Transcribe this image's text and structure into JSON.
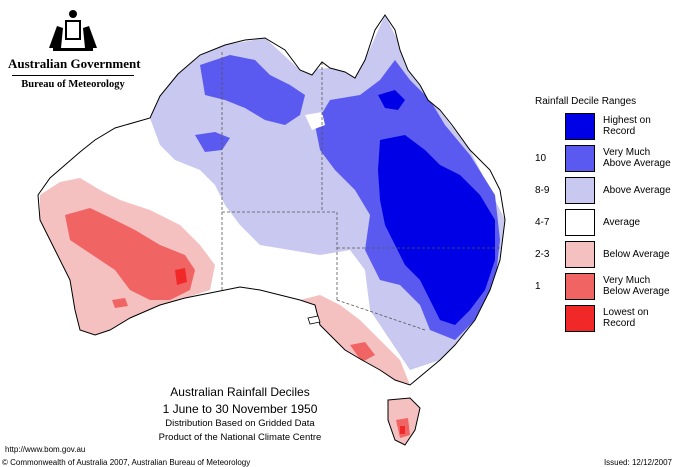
{
  "header": {
    "government": "Australian Government",
    "bureau": "Bureau of Meteorology"
  },
  "legend": {
    "title": "Rainfall Decile Ranges",
    "rows": [
      {
        "key": "",
        "label_lines": [
          "Highest on",
          "Record"
        ],
        "color": "#0000e6"
      },
      {
        "key": "10",
        "label_lines": [
          "Very Much",
          "Above Average"
        ],
        "color": "#5a5af0"
      },
      {
        "key": "8-9",
        "label_lines": [
          "Above Average"
        ],
        "color": "#c8c8f0"
      },
      {
        "key": "4-7",
        "label_lines": [
          "Average"
        ],
        "color": "#ffffff"
      },
      {
        "key": "2-3",
        "label_lines": [
          "Below Average"
        ],
        "color": "#f5c0c0"
      },
      {
        "key": "1",
        "label_lines": [
          "Very Much",
          "Below Average"
        ],
        "color": "#f06464"
      },
      {
        "key": "",
        "label_lines": [
          "Lowest on",
          "Record"
        ],
        "color": "#f02828"
      }
    ]
  },
  "caption": {
    "title": "Australian Rainfall Deciles",
    "period": "1 June to 30 November 1950",
    "line1": "Distribution Based on Gridded Data",
    "line2": "Product of the National Climate Centre"
  },
  "footer": {
    "url": "http://www.bom.gov.au",
    "copyright": "© Commonwealth of Australia 2007, Australian Bureau of Meteorology",
    "issued": "Issued: 12/12/2007"
  },
  "colors": {
    "highest": "#0000e6",
    "very_much_above": "#5a5af0",
    "above": "#c8c8f0",
    "average": "#ffffff",
    "below": "#f5c0c0",
    "very_much_below": "#f06464",
    "lowest": "#f02828"
  }
}
